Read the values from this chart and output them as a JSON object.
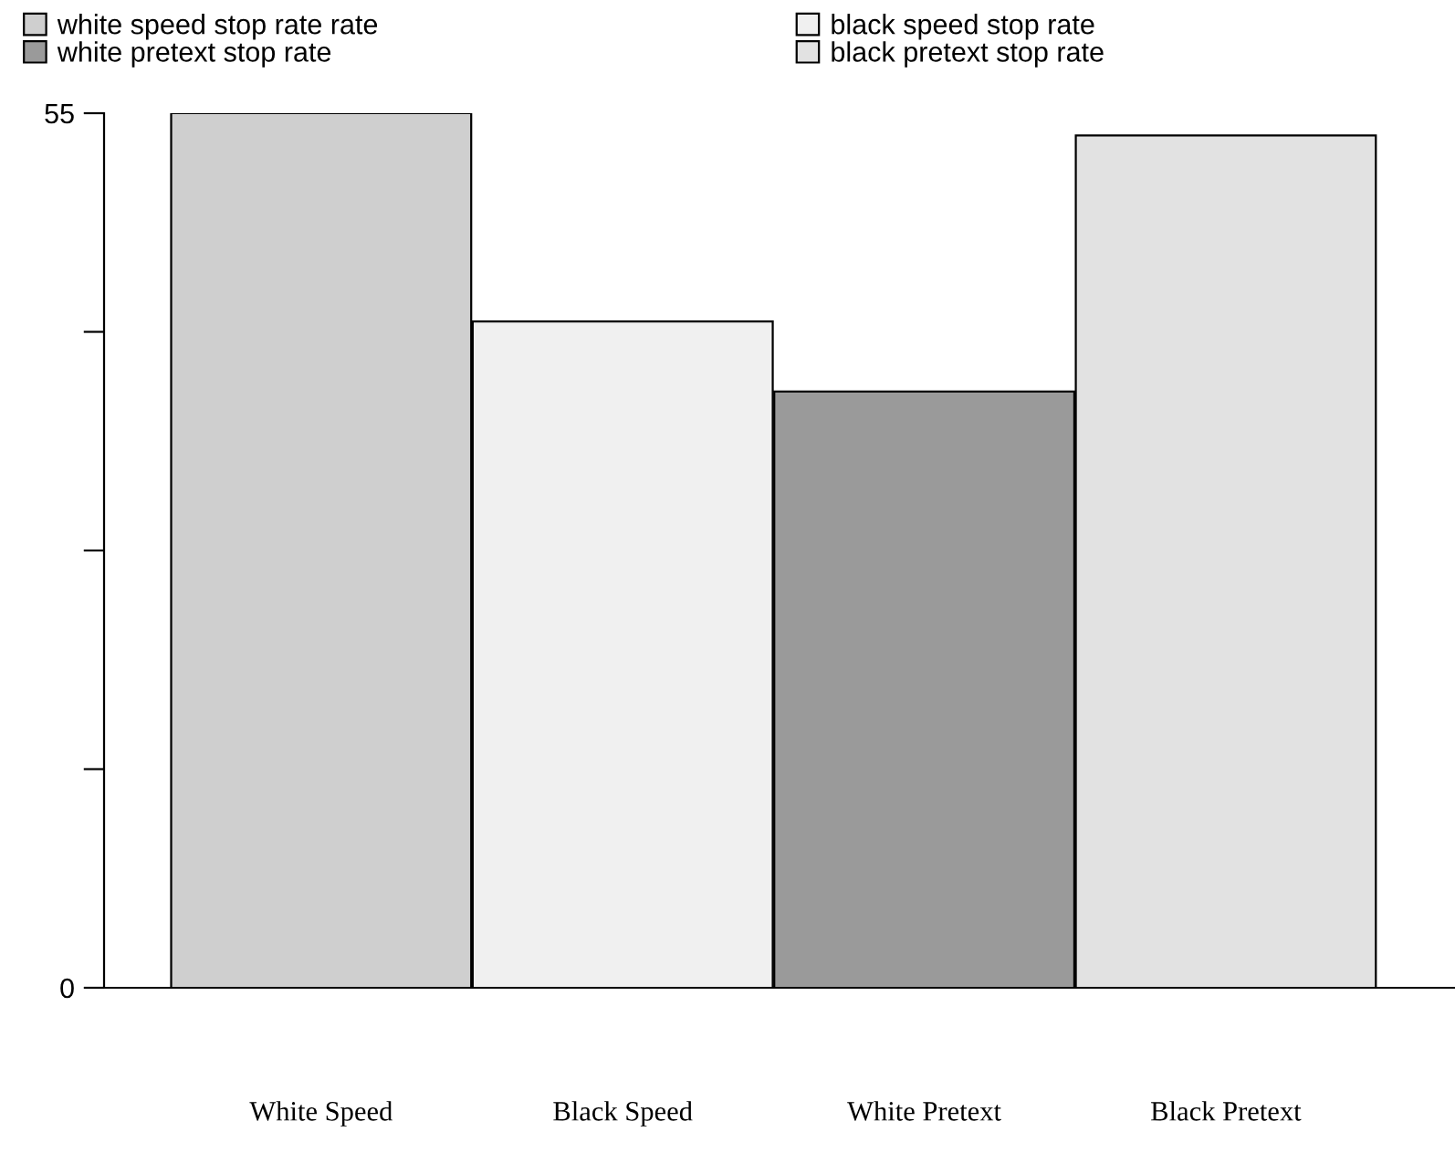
{
  "chart_data": {
    "type": "bar",
    "categories": [
      "White Speed",
      "Black Speed",
      "White Pretext",
      "Black Pretext"
    ],
    "series": [
      {
        "name": "white speed stop rate rate",
        "color": "#cfcfcf",
        "values": [
          55,
          null,
          null,
          null
        ]
      },
      {
        "name": "black speed stop rate",
        "color": "#f0f0f0",
        "values": [
          null,
          41.9,
          null,
          null
        ]
      },
      {
        "name": "white pretext stop rate",
        "color": "#9a9a9a",
        "values": [
          null,
          null,
          37.5,
          null
        ]
      },
      {
        "name": "black pretext stop rate",
        "color": "#e2e2e2",
        "values": [
          null,
          null,
          null,
          53.6
        ]
      }
    ],
    "ylim": [
      0,
      55
    ],
    "yticks": [
      0,
      {
        "value": 13.75,
        "label": null
      },
      {
        "value": 27.5,
        "label": null
      },
      {
        "value": 41.25,
        "label": null
      },
      55
    ],
    "grid": false,
    "legend": "top left"
  }
}
